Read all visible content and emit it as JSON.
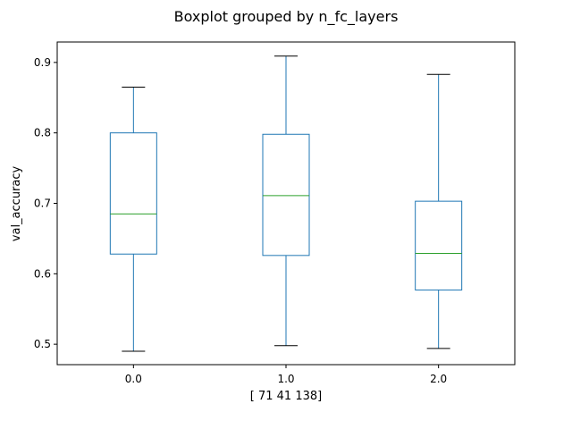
{
  "chart_data": {
    "type": "box",
    "title": "Boxplot grouped by n_fc_layers",
    "xlabel": "[ 71  41 138]",
    "ylabel": "val_accuracy",
    "categories": [
      "0.0",
      "1.0",
      "2.0"
    ],
    "ylim": [
      0.471,
      0.929
    ],
    "yticks": [
      0.5,
      0.6,
      0.7,
      0.8,
      0.9
    ],
    "ytick_labels": [
      "0.5",
      "0.6",
      "0.7",
      "0.8",
      "0.9"
    ],
    "boxes": [
      {
        "category": "0.0",
        "whisker_low": 0.49,
        "q1": 0.628,
        "median": 0.685,
        "q3": 0.8,
        "whisker_high": 0.865
      },
      {
        "category": "1.0",
        "whisker_low": 0.498,
        "q1": 0.626,
        "median": 0.711,
        "q3": 0.798,
        "whisker_high": 0.909
      },
      {
        "category": "2.0",
        "whisker_low": 0.494,
        "q1": 0.577,
        "median": 0.629,
        "q3": 0.703,
        "whisker_high": 0.883
      }
    ],
    "grid": false,
    "colors": {
      "box": "#1f77b4",
      "median": "#2ca02c",
      "cap": "#000000"
    }
  }
}
